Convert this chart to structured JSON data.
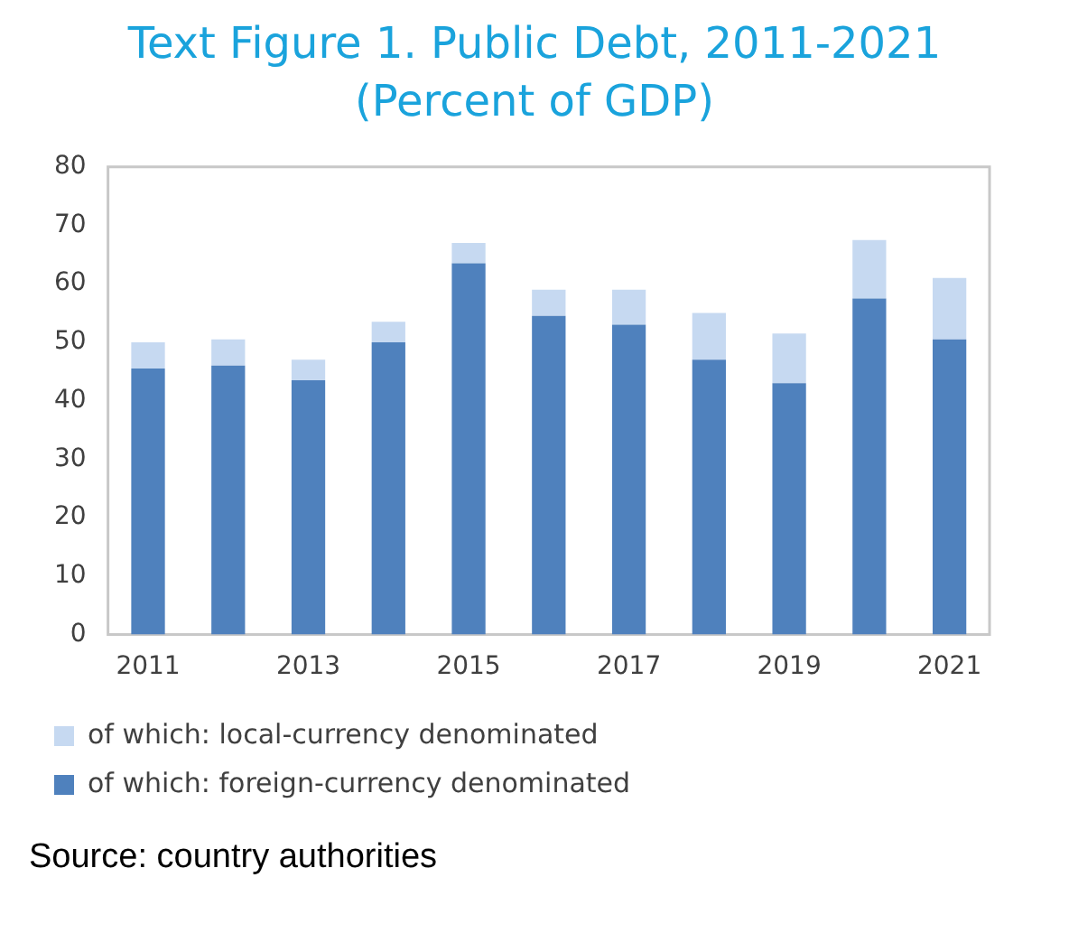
{
  "chart_data": {
    "type": "bar",
    "title": "Text Figure 1. Public Debt,  2011-2021",
    "subtitle": "(Percent of GDP)",
    "categories": [
      "2011",
      null,
      "2013",
      null,
      "2015",
      null,
      "2017",
      null,
      "2019",
      null,
      "2021"
    ],
    "stacked": true,
    "series": [
      {
        "name": "of which: foreign-currency denominated",
        "color": "#4f81bd",
        "values": [
          45.5,
          46,
          43.5,
          50,
          63.5,
          54.5,
          53,
          47,
          43,
          57.5,
          50.5
        ]
      },
      {
        "name": "of which: local-currency denominated",
        "color": "#c6d9f1",
        "values": [
          4.5,
          4.5,
          3.5,
          3.5,
          3.5,
          4.5,
          6,
          8,
          8.5,
          10,
          10.5
        ]
      }
    ],
    "ylim": [
      0,
      80
    ],
    "yticks": [
      0,
      10,
      20,
      30,
      40,
      50,
      60,
      70,
      80
    ],
    "grid": false,
    "legend": "bottom",
    "annotations": [
      "Source: country authorities"
    ]
  }
}
